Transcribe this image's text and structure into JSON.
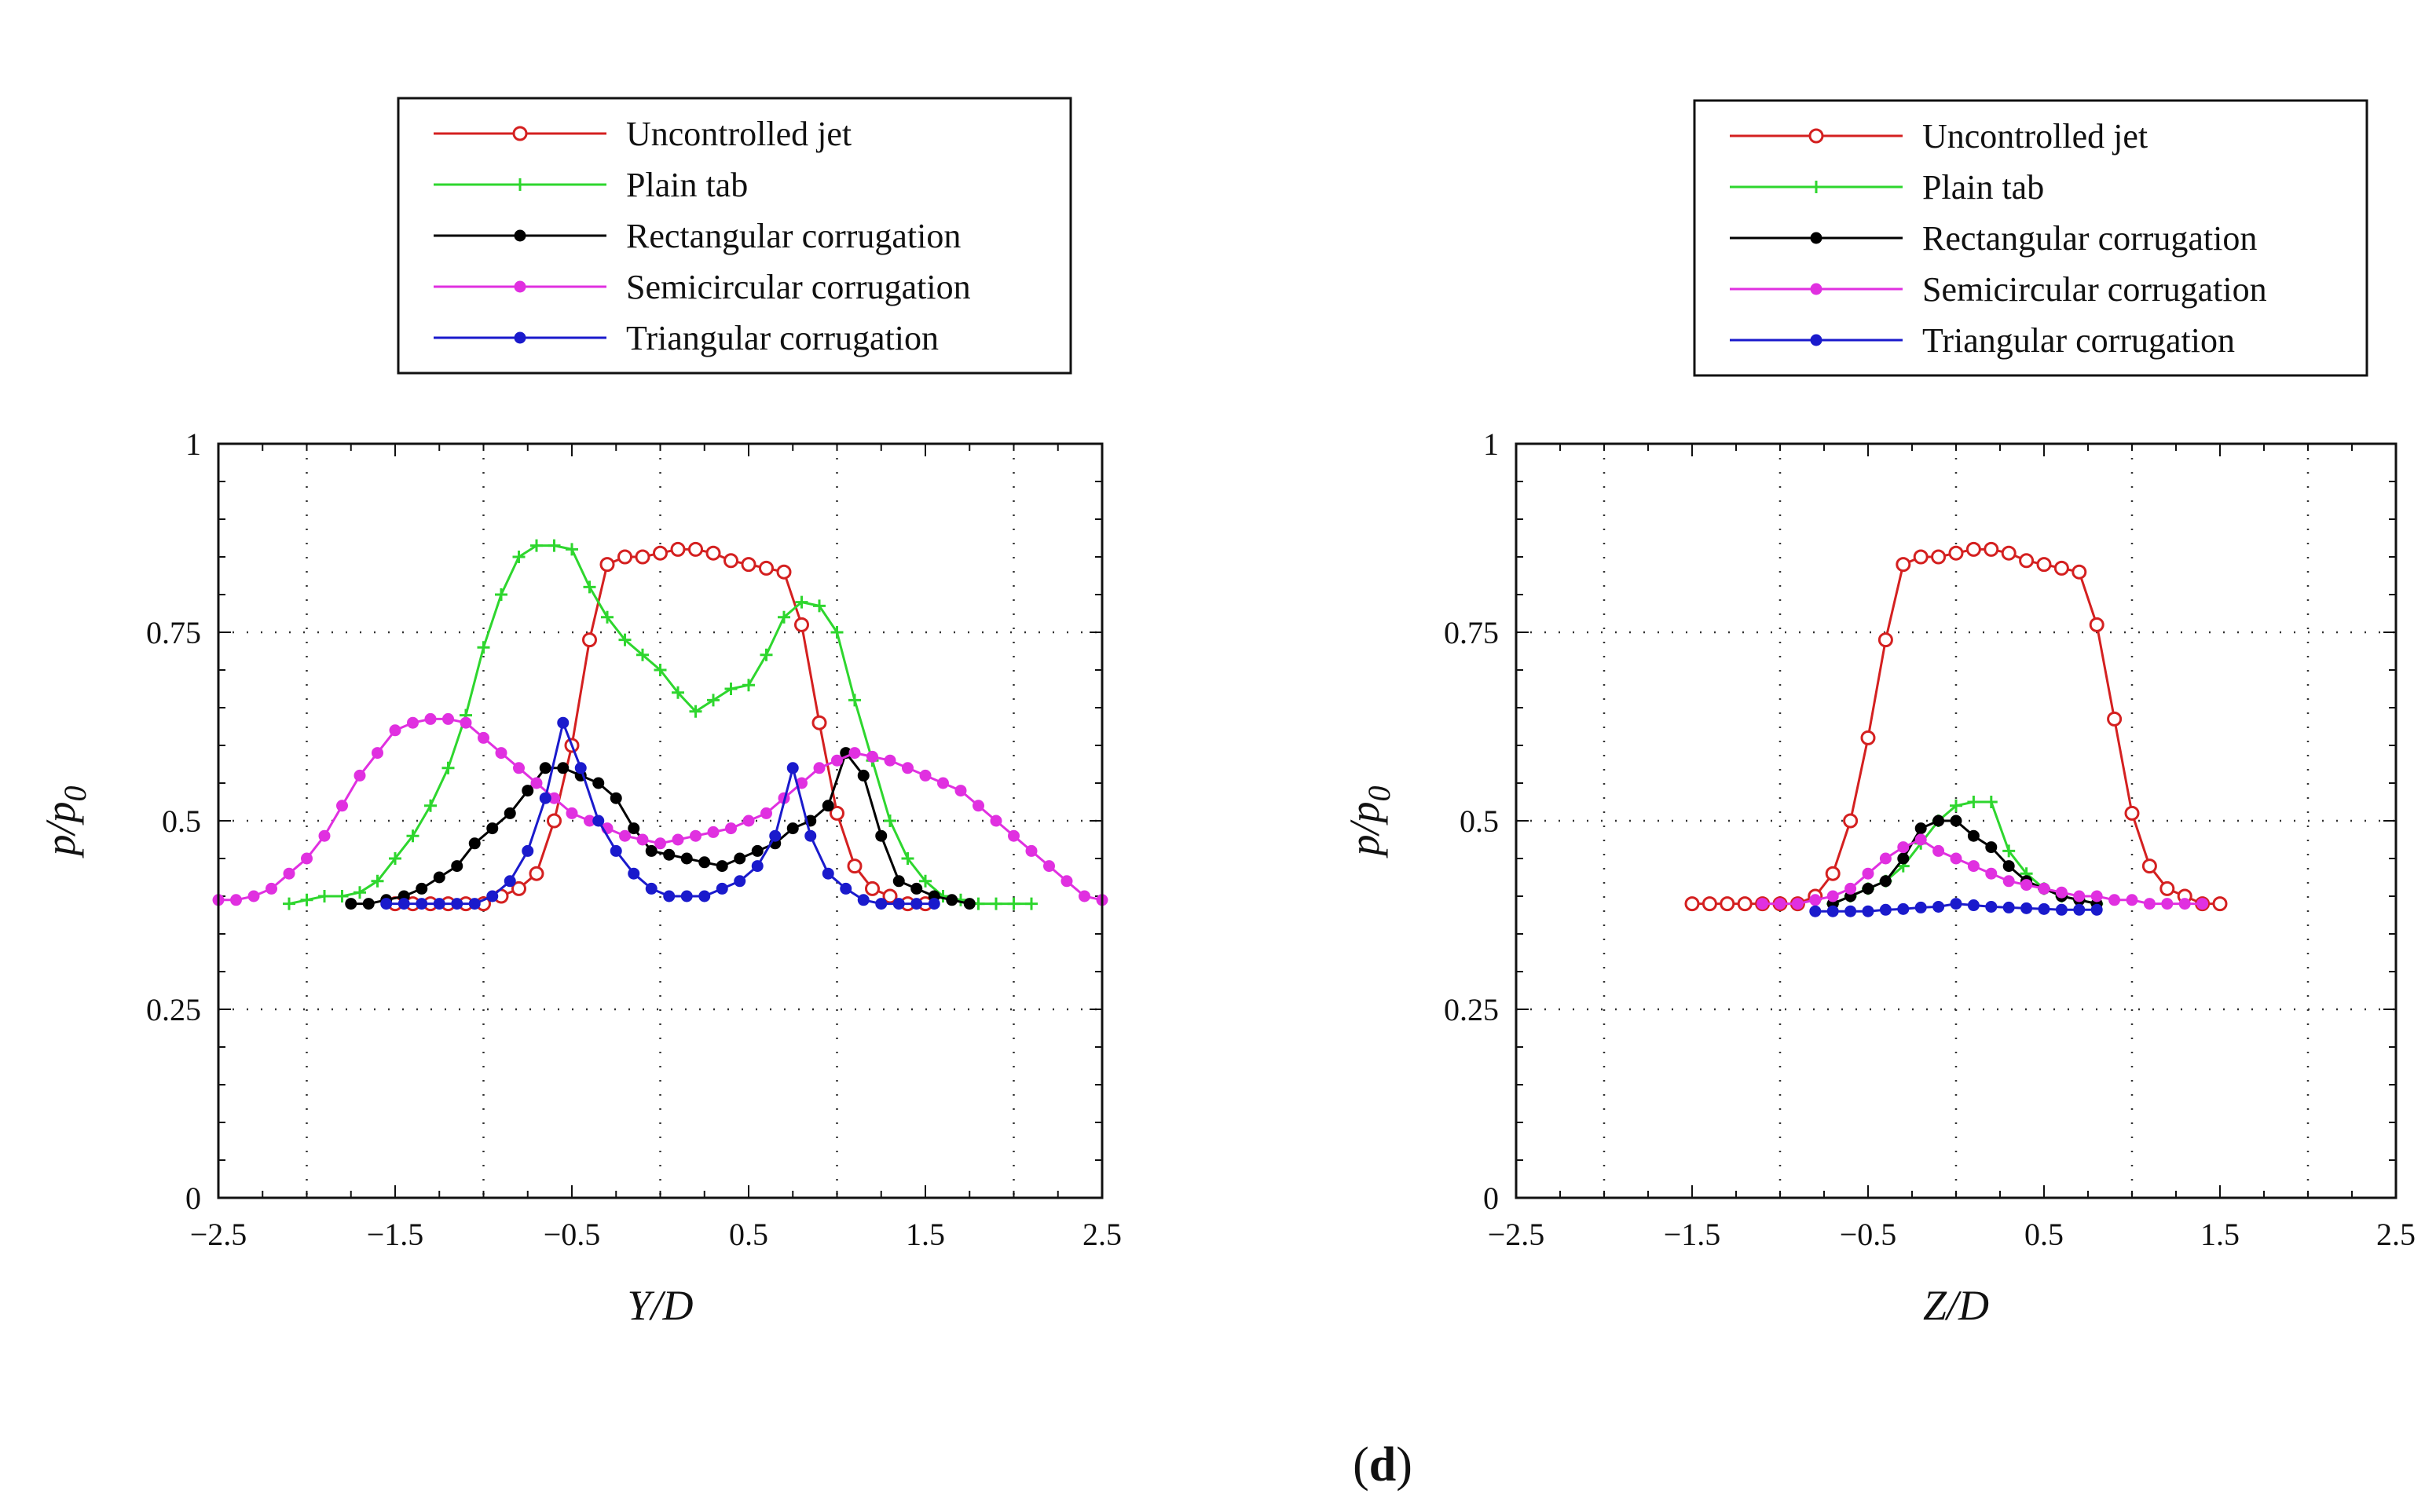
{
  "figure_caption": {
    "open": "(",
    "label": "d",
    "close": ")"
  },
  "chart_data": [
    {
      "type": "line",
      "title": "",
      "xlabel": "Y/D",
      "ylabel": "p/p0",
      "ylabel_main": "p/p",
      "ylabel_sub": "0",
      "xlim": [
        -2.5,
        2.5
      ],
      "ylim": [
        0,
        1
      ],
      "xticks": [
        -2.5,
        -1.5,
        -0.5,
        0.5,
        1.5,
        2.5
      ],
      "xtick_labels": [
        "−2.5",
        "−1.5",
        "−0.5",
        "0.5",
        "1.5",
        "2.5"
      ],
      "yticks": [
        0,
        0.25,
        0.5,
        0.75,
        1
      ],
      "ytick_labels": [
        "0",
        "0.25",
        "0.5",
        "0.75",
        "1"
      ],
      "grid": true,
      "legend_position": "top",
      "series": [
        {
          "name": "Uncontrolled jet",
          "color": "#d42020",
          "marker": "open-circle",
          "x": [
            -1.5,
            -1.4,
            -1.3,
            -1.2,
            -1.1,
            -1.0,
            -0.9,
            -0.8,
            -0.7,
            -0.6,
            -0.5,
            -0.4,
            -0.3,
            -0.2,
            -0.1,
            0.0,
            0.1,
            0.2,
            0.3,
            0.4,
            0.5,
            0.6,
            0.7,
            0.8,
            0.9,
            1.0,
            1.1,
            1.2,
            1.3,
            1.4,
            1.5
          ],
          "y": [
            0.39,
            0.39,
            0.39,
            0.39,
            0.39,
            0.39,
            0.4,
            0.41,
            0.43,
            0.5,
            0.6,
            0.74,
            0.84,
            0.85,
            0.85,
            0.855,
            0.86,
            0.86,
            0.855,
            0.845,
            0.84,
            0.835,
            0.83,
            0.76,
            0.63,
            0.51,
            0.44,
            0.41,
            0.4,
            0.39,
            0.39
          ]
        },
        {
          "name": "Plain tab",
          "color": "#2ed62e",
          "marker": "plus",
          "x": [
            -2.1,
            -2.0,
            -1.9,
            -1.8,
            -1.7,
            -1.6,
            -1.5,
            -1.4,
            -1.3,
            -1.2,
            -1.1,
            -1.0,
            -0.9,
            -0.8,
            -0.7,
            -0.6,
            -0.5,
            -0.4,
            -0.3,
            -0.2,
            -0.1,
            0.0,
            0.1,
            0.2,
            0.3,
            0.4,
            0.5,
            0.6,
            0.7,
            0.8,
            0.9,
            1.0,
            1.1,
            1.2,
            1.3,
            1.4,
            1.5,
            1.6,
            1.7,
            1.8,
            1.9,
            2.0,
            2.1
          ],
          "y": [
            0.39,
            0.395,
            0.4,
            0.4,
            0.405,
            0.42,
            0.45,
            0.48,
            0.52,
            0.57,
            0.64,
            0.73,
            0.8,
            0.85,
            0.865,
            0.865,
            0.86,
            0.81,
            0.77,
            0.74,
            0.72,
            0.7,
            0.67,
            0.645,
            0.66,
            0.675,
            0.68,
            0.72,
            0.77,
            0.79,
            0.785,
            0.75,
            0.66,
            0.58,
            0.5,
            0.45,
            0.42,
            0.4,
            0.395,
            0.39,
            0.39,
            0.39,
            0.39
          ]
        },
        {
          "name": "Rectangular corrugation",
          "color": "#000000",
          "marker": "filled-circle",
          "x": [
            -1.75,
            -1.65,
            -1.55,
            -1.45,
            -1.35,
            -1.25,
            -1.15,
            -1.05,
            -0.95,
            -0.85,
            -0.75,
            -0.65,
            -0.55,
            -0.45,
            -0.35,
            -0.25,
            -0.15,
            -0.05,
            0.05,
            0.15,
            0.25,
            0.35,
            0.45,
            0.55,
            0.65,
            0.75,
            0.85,
            0.95,
            1.05,
            1.15,
            1.25,
            1.35,
            1.45,
            1.55,
            1.65,
            1.75
          ],
          "y": [
            0.39,
            0.39,
            0.395,
            0.4,
            0.41,
            0.425,
            0.44,
            0.47,
            0.49,
            0.51,
            0.54,
            0.57,
            0.57,
            0.56,
            0.55,
            0.53,
            0.49,
            0.46,
            0.455,
            0.45,
            0.445,
            0.44,
            0.45,
            0.46,
            0.47,
            0.49,
            0.5,
            0.52,
            0.59,
            0.56,
            0.48,
            0.42,
            0.41,
            0.4,
            0.395,
            0.39
          ]
        },
        {
          "name": "Semicircular corrugation",
          "color": "#e030e0",
          "marker": "filled-circle",
          "x": [
            -2.5,
            -2.4,
            -2.3,
            -2.2,
            -2.1,
            -2.0,
            -1.9,
            -1.8,
            -1.7,
            -1.6,
            -1.5,
            -1.4,
            -1.3,
            -1.2,
            -1.1,
            -1.0,
            -0.9,
            -0.8,
            -0.7,
            -0.6,
            -0.5,
            -0.4,
            -0.3,
            -0.2,
            -0.1,
            0.0,
            0.1,
            0.2,
            0.3,
            0.4,
            0.5,
            0.6,
            0.7,
            0.8,
            0.9,
            1.0,
            1.1,
            1.2,
            1.3,
            1.4,
            1.5,
            1.6,
            1.7,
            1.8,
            1.9,
            2.0,
            2.1,
            2.2,
            2.3,
            2.4,
            2.5
          ],
          "y": [
            0.395,
            0.395,
            0.4,
            0.41,
            0.43,
            0.45,
            0.48,
            0.52,
            0.56,
            0.59,
            0.62,
            0.63,
            0.635,
            0.635,
            0.63,
            0.61,
            0.59,
            0.57,
            0.55,
            0.53,
            0.51,
            0.5,
            0.49,
            0.48,
            0.475,
            0.47,
            0.475,
            0.48,
            0.485,
            0.49,
            0.5,
            0.51,
            0.53,
            0.55,
            0.57,
            0.58,
            0.59,
            0.585,
            0.58,
            0.57,
            0.56,
            0.55,
            0.54,
            0.52,
            0.5,
            0.48,
            0.46,
            0.44,
            0.42,
            0.4,
            0.395
          ]
        },
        {
          "name": "Triangular corrugation",
          "color": "#1a1acc",
          "marker": "filled-circle",
          "x": [
            -1.55,
            -1.45,
            -1.35,
            -1.25,
            -1.15,
            -1.05,
            -0.95,
            -0.85,
            -0.75,
            -0.65,
            -0.55,
            -0.45,
            -0.35,
            -0.25,
            -0.15,
            -0.05,
            0.05,
            0.15,
            0.25,
            0.35,
            0.45,
            0.55,
            0.65,
            0.75,
            0.85,
            0.95,
            1.05,
            1.15,
            1.25,
            1.35,
            1.45,
            1.55
          ],
          "y": [
            0.39,
            0.39,
            0.39,
            0.39,
            0.39,
            0.39,
            0.4,
            0.42,
            0.46,
            0.53,
            0.63,
            0.57,
            0.5,
            0.46,
            0.43,
            0.41,
            0.4,
            0.4,
            0.4,
            0.41,
            0.42,
            0.44,
            0.48,
            0.57,
            0.48,
            0.43,
            0.41,
            0.395,
            0.39,
            0.39,
            0.39,
            0.39
          ]
        }
      ]
    },
    {
      "type": "line",
      "title": "",
      "xlabel": "Z/D",
      "ylabel": "p/p0",
      "ylabel_main": "p/p",
      "ylabel_sub": "0",
      "xlim": [
        -2.5,
        2.5
      ],
      "ylim": [
        0,
        1
      ],
      "xticks": [
        -2.5,
        -1.5,
        -0.5,
        0.5,
        1.5,
        2.5
      ],
      "xtick_labels": [
        "−2.5",
        "−1.5",
        "−0.5",
        "0.5",
        "1.5",
        "2.5"
      ],
      "yticks": [
        0,
        0.25,
        0.5,
        0.75,
        1
      ],
      "ytick_labels": [
        "0",
        "0.25",
        "0.5",
        "0.75",
        "1"
      ],
      "grid": true,
      "legend_position": "top",
      "series": [
        {
          "name": "Uncontrolled jet",
          "color": "#d42020",
          "marker": "open-circle",
          "x": [
            -1.5,
            -1.4,
            -1.3,
            -1.2,
            -1.1,
            -1.0,
            -0.9,
            -0.8,
            -0.7,
            -0.6,
            -0.5,
            -0.4,
            -0.3,
            -0.2,
            -0.1,
            0.0,
            0.1,
            0.2,
            0.3,
            0.4,
            0.5,
            0.6,
            0.7,
            0.8,
            0.9,
            1.0,
            1.1,
            1.2,
            1.3,
            1.4,
            1.5
          ],
          "y": [
            0.39,
            0.39,
            0.39,
            0.39,
            0.39,
            0.39,
            0.39,
            0.4,
            0.43,
            0.5,
            0.61,
            0.74,
            0.84,
            0.85,
            0.85,
            0.855,
            0.86,
            0.86,
            0.855,
            0.845,
            0.84,
            0.835,
            0.83,
            0.76,
            0.635,
            0.51,
            0.44,
            0.41,
            0.4,
            0.39,
            0.39
          ]
        },
        {
          "name": "Plain tab",
          "color": "#2ed62e",
          "marker": "plus",
          "x": [
            -0.7,
            -0.6,
            -0.5,
            -0.4,
            -0.3,
            -0.2,
            -0.1,
            0.0,
            0.1,
            0.2,
            0.3,
            0.4,
            0.5,
            0.6,
            0.7,
            0.8
          ],
          "y": [
            0.39,
            0.4,
            0.41,
            0.42,
            0.44,
            0.47,
            0.5,
            0.52,
            0.525,
            0.525,
            0.46,
            0.43,
            0.41,
            0.4,
            0.395,
            0.39
          ]
        },
        {
          "name": "Rectangular corrugation",
          "color": "#000000",
          "marker": "filled-circle",
          "x": [
            -0.7,
            -0.6,
            -0.5,
            -0.4,
            -0.3,
            -0.2,
            -0.1,
            0.0,
            0.1,
            0.2,
            0.3,
            0.4,
            0.5,
            0.6,
            0.7,
            0.8
          ],
          "y": [
            0.39,
            0.4,
            0.41,
            0.42,
            0.45,
            0.49,
            0.5,
            0.5,
            0.48,
            0.465,
            0.44,
            0.42,
            0.41,
            0.4,
            0.395,
            0.39
          ]
        },
        {
          "name": "Semicircular corrugation",
          "color": "#e030e0",
          "marker": "filled-circle",
          "x": [
            -1.1,
            -1.0,
            -0.9,
            -0.8,
            -0.7,
            -0.6,
            -0.5,
            -0.4,
            -0.3,
            -0.2,
            -0.1,
            0.0,
            0.1,
            0.2,
            0.3,
            0.4,
            0.5,
            0.6,
            0.7,
            0.8,
            0.9,
            1.0,
            1.1,
            1.2,
            1.3,
            1.4
          ],
          "y": [
            0.39,
            0.39,
            0.39,
            0.395,
            0.4,
            0.41,
            0.43,
            0.45,
            0.465,
            0.475,
            0.46,
            0.45,
            0.44,
            0.43,
            0.42,
            0.415,
            0.41,
            0.405,
            0.4,
            0.4,
            0.395,
            0.395,
            0.39,
            0.39,
            0.39,
            0.39
          ]
        },
        {
          "name": "Triangular corrugation",
          "color": "#1a1acc",
          "marker": "filled-circle",
          "x": [
            -0.8,
            -0.7,
            -0.6,
            -0.5,
            -0.4,
            -0.3,
            -0.2,
            -0.1,
            0.0,
            0.1,
            0.2,
            0.3,
            0.4,
            0.5,
            0.6,
            0.7,
            0.8
          ],
          "y": [
            0.38,
            0.38,
            0.38,
            0.38,
            0.382,
            0.383,
            0.385,
            0.386,
            0.39,
            0.388,
            0.386,
            0.385,
            0.384,
            0.383,
            0.382,
            0.382,
            0.382
          ]
        }
      ]
    }
  ]
}
